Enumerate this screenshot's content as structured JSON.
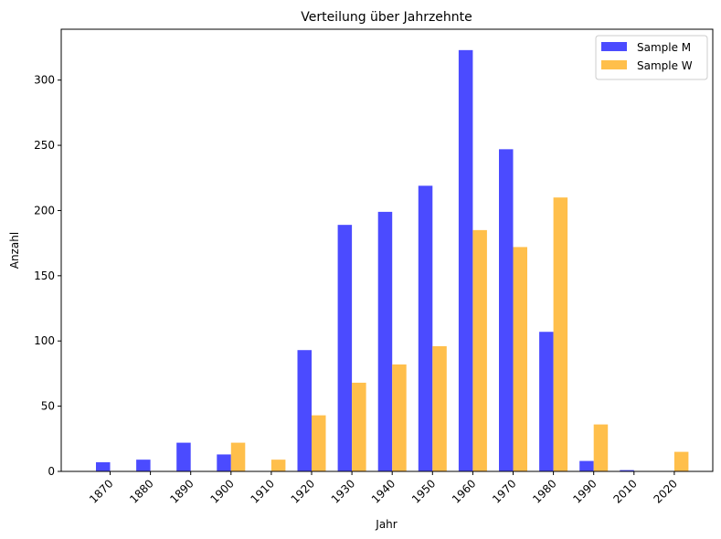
{
  "chart_data": {
    "type": "bar",
    "title": "Verteilung über Jahrzehnte",
    "xlabel": "Jahr",
    "ylabel": "Anzahl",
    "categories": [
      "1870",
      "1880",
      "1890",
      "1900",
      "1910",
      "1920",
      "1930",
      "1940",
      "1950",
      "1960",
      "1970",
      "1980",
      "1990",
      "2010",
      "2020"
    ],
    "series": [
      {
        "name": "Sample M",
        "color": "#4b4bff",
        "values": [
          7,
          9,
          22,
          13,
          0,
          93,
          189,
          199,
          219,
          323,
          247,
          107,
          8,
          1,
          0
        ]
      },
      {
        "name": "Sample W",
        "color": "#ffbf4b",
        "values": [
          0,
          0,
          0,
          22,
          9,
          43,
          68,
          82,
          96,
          185,
          172,
          210,
          36,
          0,
          15
        ]
      }
    ],
    "ylim": [
      0,
      339
    ],
    "yticks": [
      0,
      50,
      100,
      150,
      200,
      250,
      300
    ],
    "grid": false,
    "legend": "top-right"
  }
}
